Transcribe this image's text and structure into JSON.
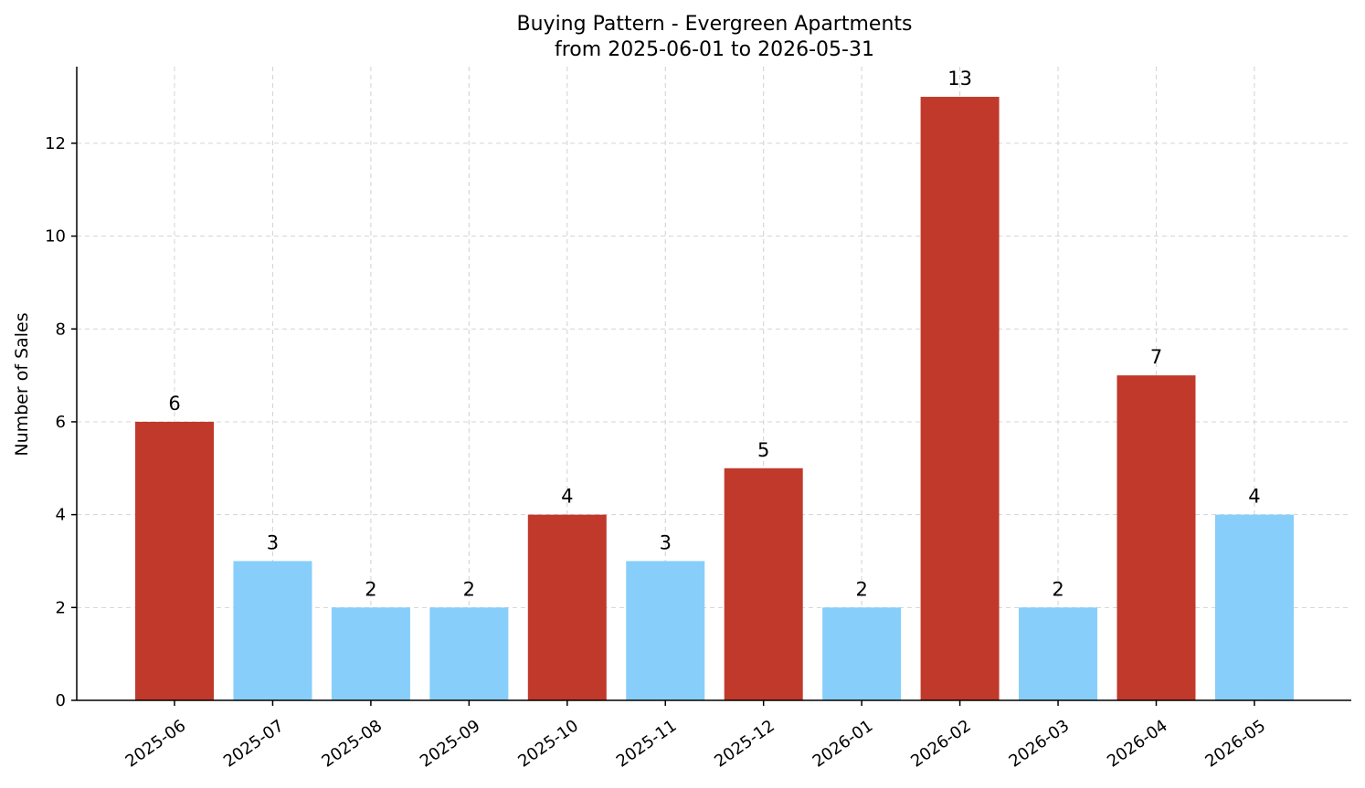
{
  "chart_data": {
    "type": "bar",
    "title": "Buying Pattern - Evergreen Apartments",
    "subtitle": "from 2025-06-01 to 2026-05-31",
    "xlabel": "",
    "ylabel": "Number of Sales",
    "categories": [
      "2025-06",
      "2025-07",
      "2025-08",
      "2025-09",
      "2025-10",
      "2025-11",
      "2025-12",
      "2026-01",
      "2026-02",
      "2026-03",
      "2026-04",
      "2026-05"
    ],
    "values": [
      6,
      3,
      2,
      2,
      4,
      3,
      5,
      2,
      13,
      2,
      7,
      4
    ],
    "bar_colors": [
      "#c0392b",
      "#87cefa",
      "#87cefa",
      "#87cefa",
      "#c0392b",
      "#87cefa",
      "#c0392b",
      "#87cefa",
      "#c0392b",
      "#87cefa",
      "#c0392b",
      "#87cefa"
    ],
    "yticks": [
      0,
      2,
      4,
      6,
      8,
      10,
      12
    ],
    "ylim": [
      0,
      13.65
    ],
    "grid": true,
    "data_labels": true
  }
}
